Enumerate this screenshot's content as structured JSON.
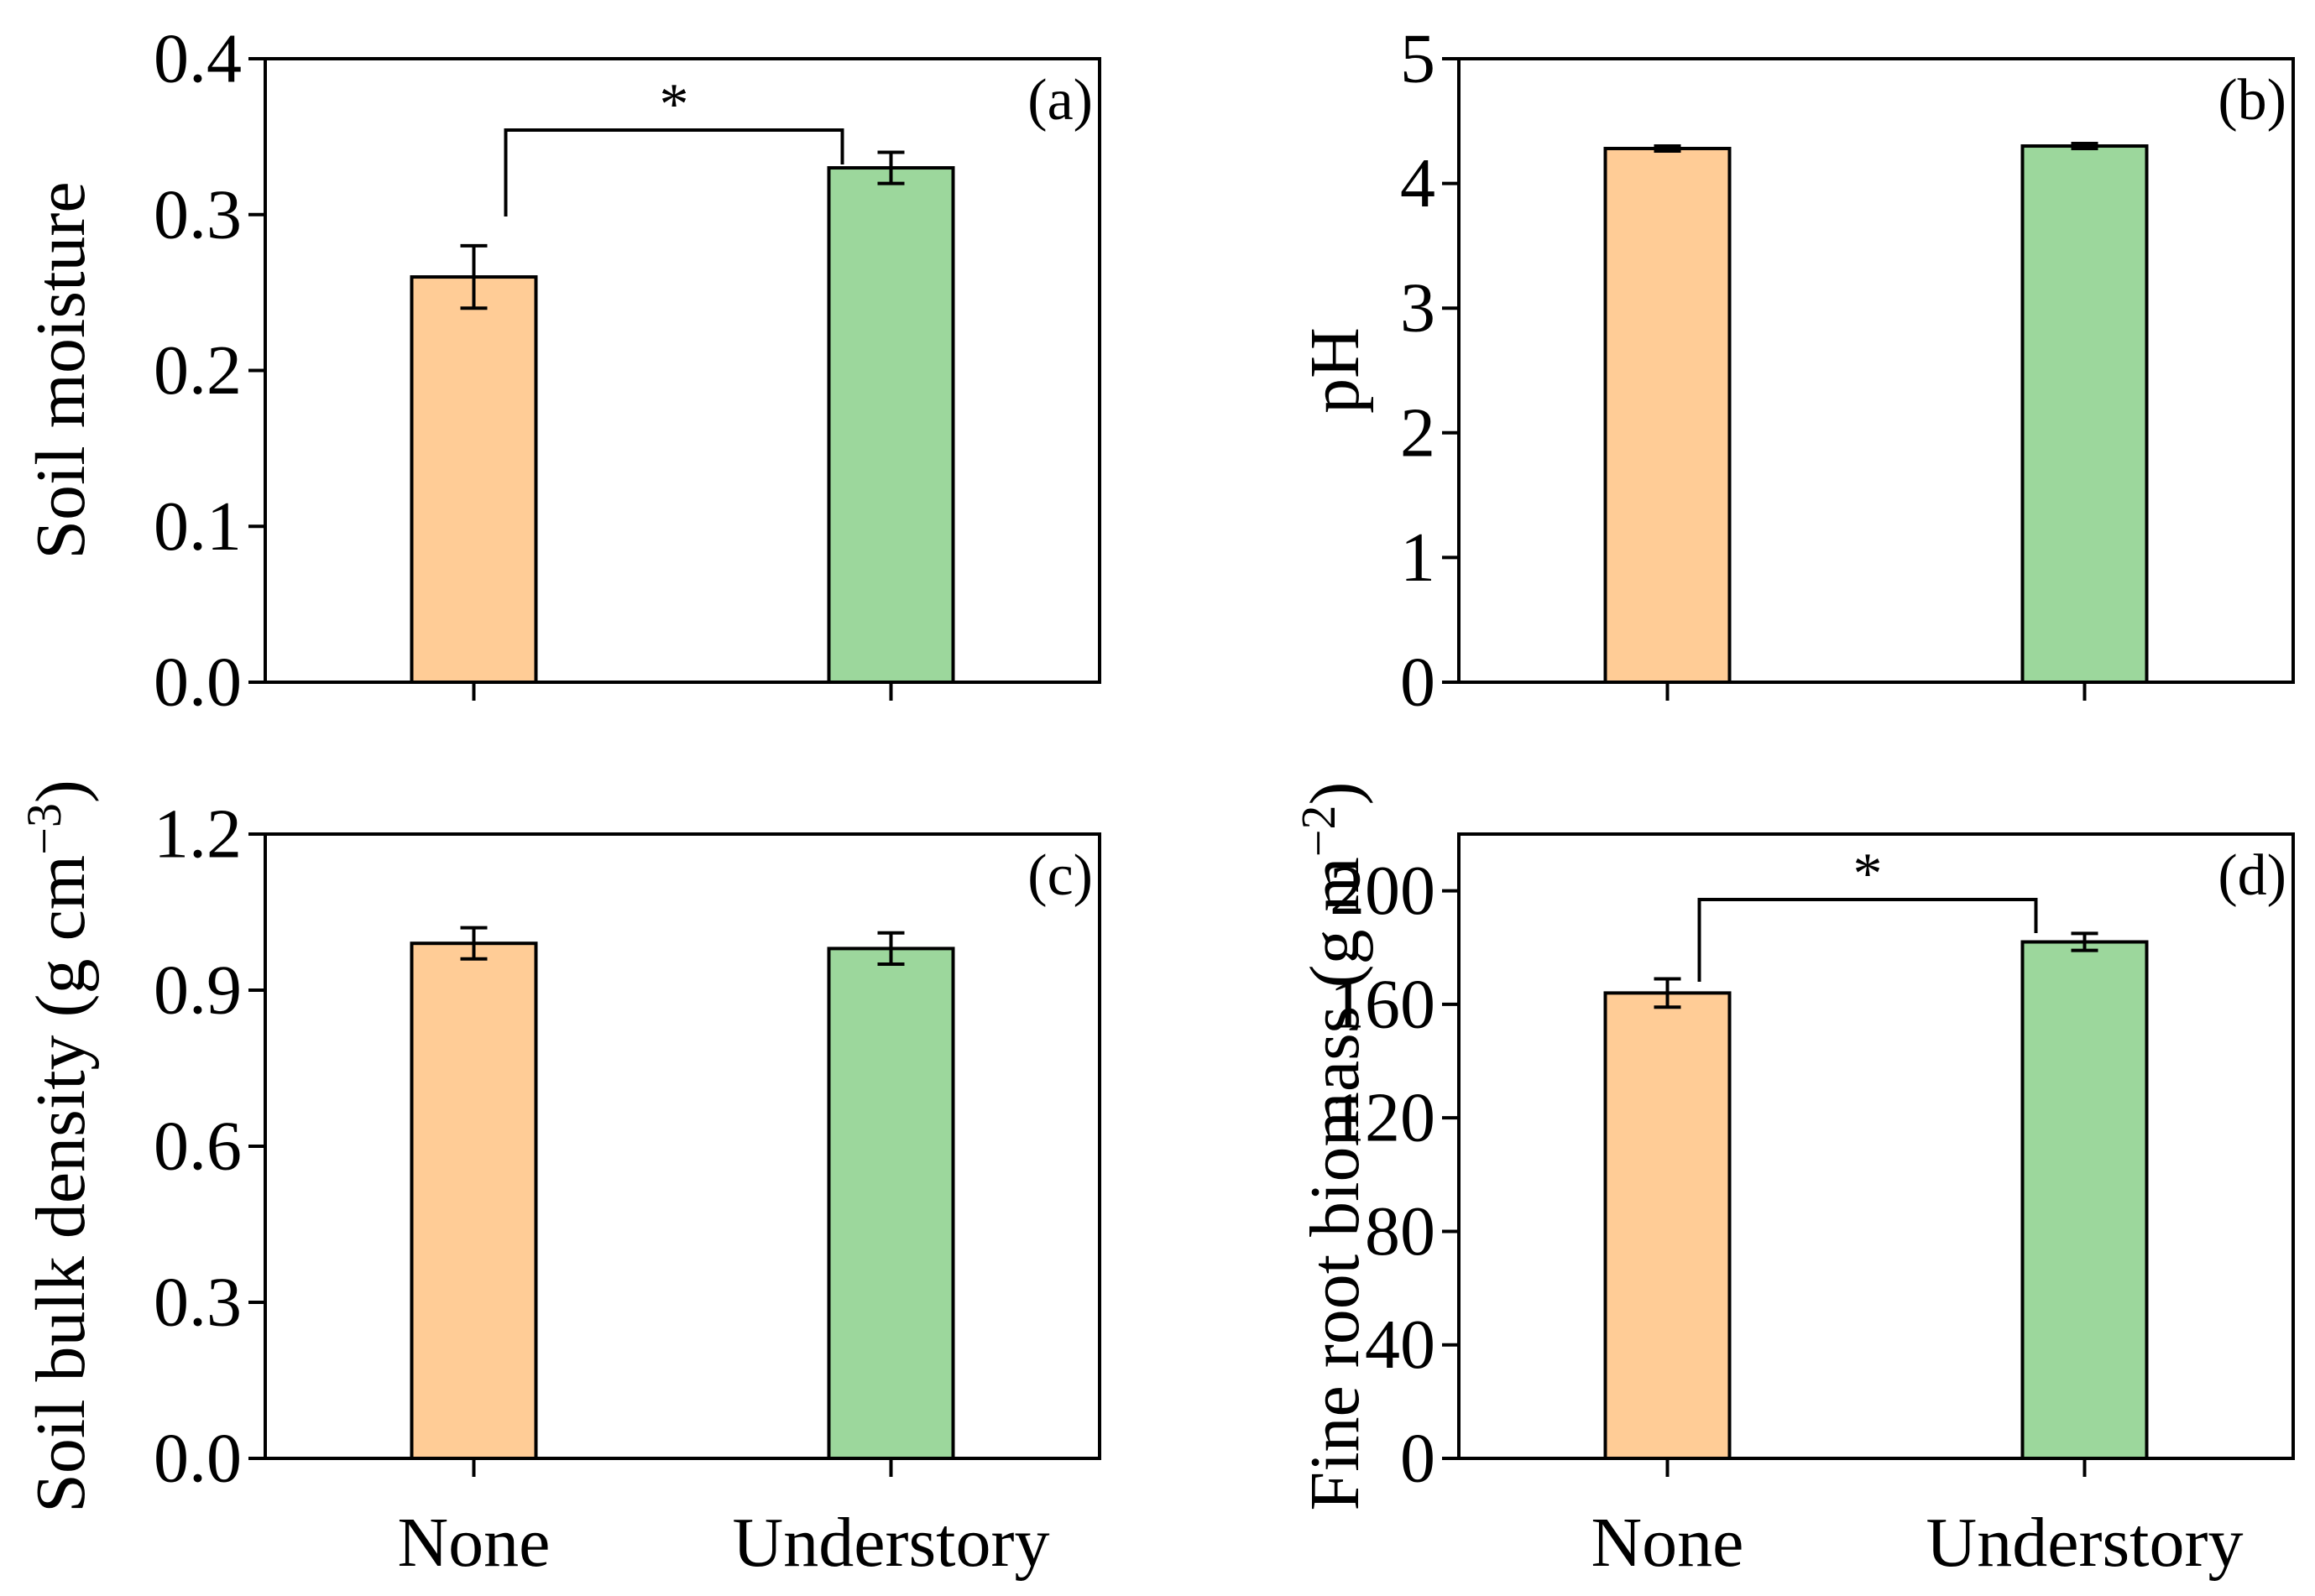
{
  "colors": {
    "none_fill": "#FFCC96",
    "understory_fill": "#9CD79C",
    "stroke": "#000000"
  },
  "chart_data": [
    {
      "type": "bar",
      "panel": "(a)",
      "categories": [
        "None",
        "Understory"
      ],
      "values": [
        0.26,
        0.33
      ],
      "errors": [
        0.02,
        0.01
      ],
      "ylabel": "Soil moisture",
      "xlabel": "",
      "ylim": [
        0,
        0.4
      ],
      "yticks": [
        "0.0",
        "0.1",
        "0.2",
        "0.3",
        "0.4"
      ],
      "show_category_labels": false,
      "significance": "*"
    },
    {
      "type": "bar",
      "panel": "(b)",
      "categories": [
        "None",
        "Understory"
      ],
      "values": [
        4.28,
        4.3
      ],
      "errors": [
        0.02,
        0.02
      ],
      "ylabel": "pH",
      "xlabel": "",
      "ylim": [
        0,
        5
      ],
      "yticks": [
        "0",
        "1",
        "2",
        "3",
        "4",
        "5"
      ],
      "show_category_labels": false,
      "significance": ""
    },
    {
      "type": "bar",
      "panel": "(c)",
      "categories": [
        "None",
        "Understory"
      ],
      "values": [
        0.99,
        0.98
      ],
      "errors": [
        0.03,
        0.03
      ],
      "ylabel": "Soil bulk density (g cm",
      "ylabel_sup": "−3",
      "ylabel_end": ")",
      "xlabel": "",
      "ylim": [
        0,
        1.2
      ],
      "yticks": [
        "0.0",
        "0.3",
        "0.6",
        "0.9",
        "1.2"
      ],
      "show_category_labels": true,
      "significance": ""
    },
    {
      "type": "bar",
      "panel": "(d)",
      "categories": [
        "None",
        "Understory"
      ],
      "values": [
        164,
        182
      ],
      "errors": [
        5,
        3
      ],
      "ylabel": "Fine root biomass (g m",
      "ylabel_sup": "−2",
      "ylabel_end": ")",
      "xlabel": "",
      "ylim": [
        0,
        220
      ],
      "yticks": [
        "0",
        "40",
        "80",
        "120",
        "160",
        "200"
      ],
      "show_category_labels": true,
      "significance": "*"
    }
  ]
}
